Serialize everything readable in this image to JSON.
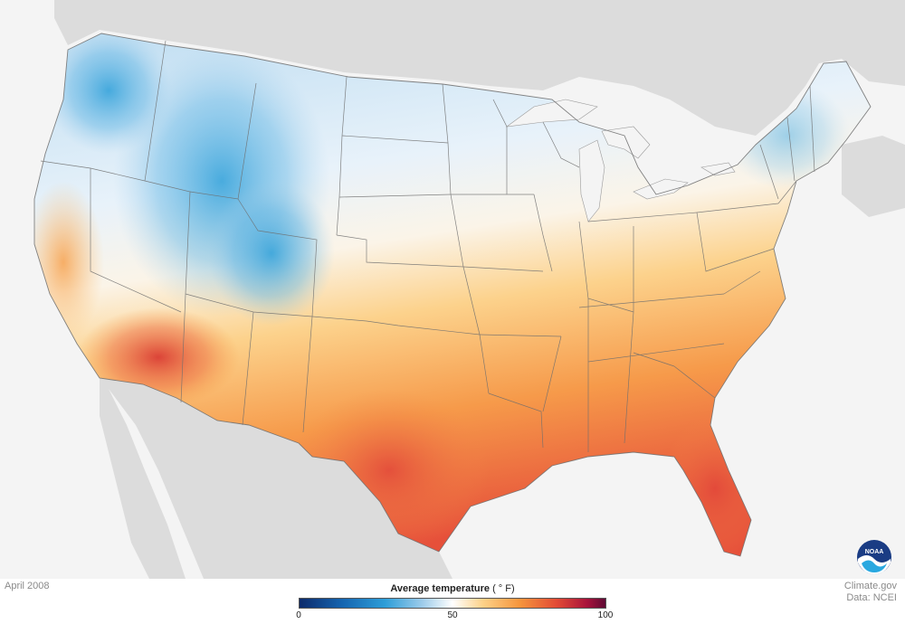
{
  "map": {
    "background_color": "#f4f4f4",
    "neighbor_land_color": "#dcdcdc",
    "water_color": "#f4f4f4",
    "border_color": "#6e6e6e"
  },
  "footer": {
    "date_label": "April 2008",
    "credit_line1": "Climate.gov",
    "credit_line2": "Data: NCEI"
  },
  "legend": {
    "title": "Average temperature",
    "unit": "( ° F)",
    "min_label": "0",
    "mid_label": "50",
    "max_label": "100",
    "colors": [
      "#0c2a6b",
      "#1565b0",
      "#2e9ed8",
      "#9ccbea",
      "#ffffff",
      "#fdd188",
      "#f6953d",
      "#e24b35",
      "#a8123b",
      "#5e0a34"
    ]
  },
  "logo": {
    "text": "NOAA",
    "color": "#1a3c84",
    "accent_color": "#29a8e0"
  }
}
